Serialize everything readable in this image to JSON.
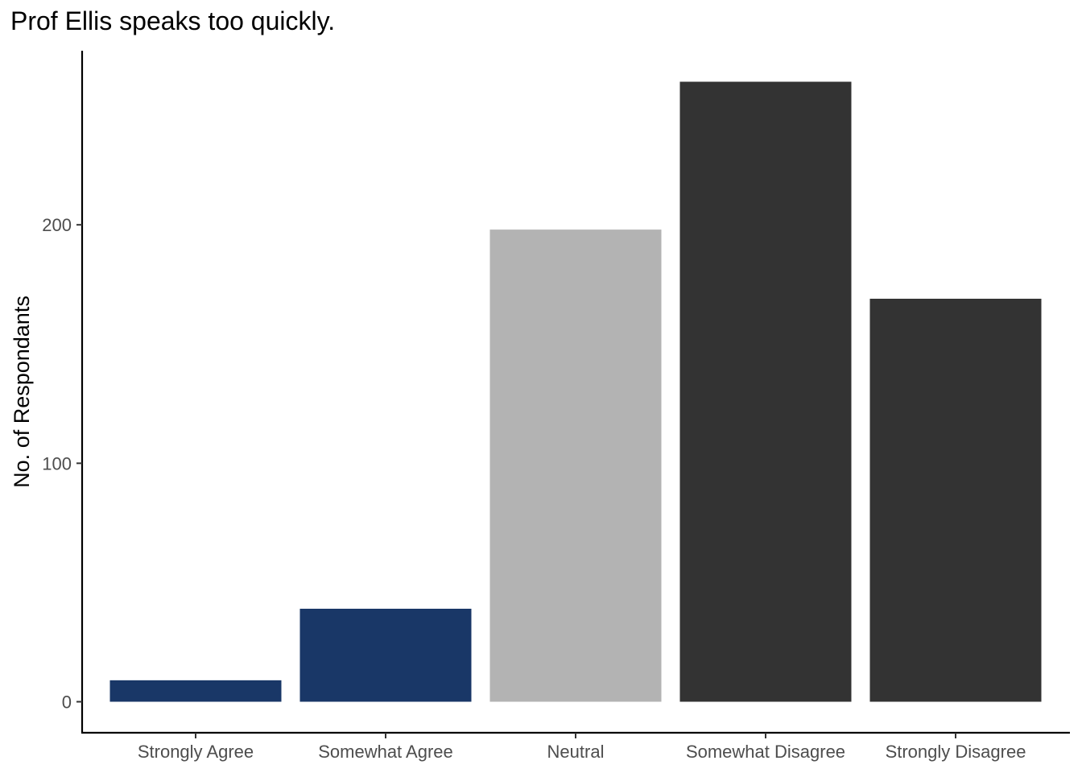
{
  "chart_data": {
    "type": "bar",
    "title": "Prof Ellis speaks too quickly.",
    "xlabel": "",
    "ylabel": "No. of Respondants",
    "categories": [
      "Strongly Agree",
      "Somewhat Agree",
      "Neutral",
      "Somewhat Disagree",
      "Strongly Disagree"
    ],
    "values": [
      9,
      39,
      198,
      260,
      169
    ],
    "colors": [
      "#193767",
      "#193767",
      "#b3b3b3",
      "#333333",
      "#333333"
    ],
    "yticks": [
      0,
      100,
      200
    ],
    "ylim": [
      -13,
      273
    ],
    "grid": false,
    "legend": "none"
  }
}
